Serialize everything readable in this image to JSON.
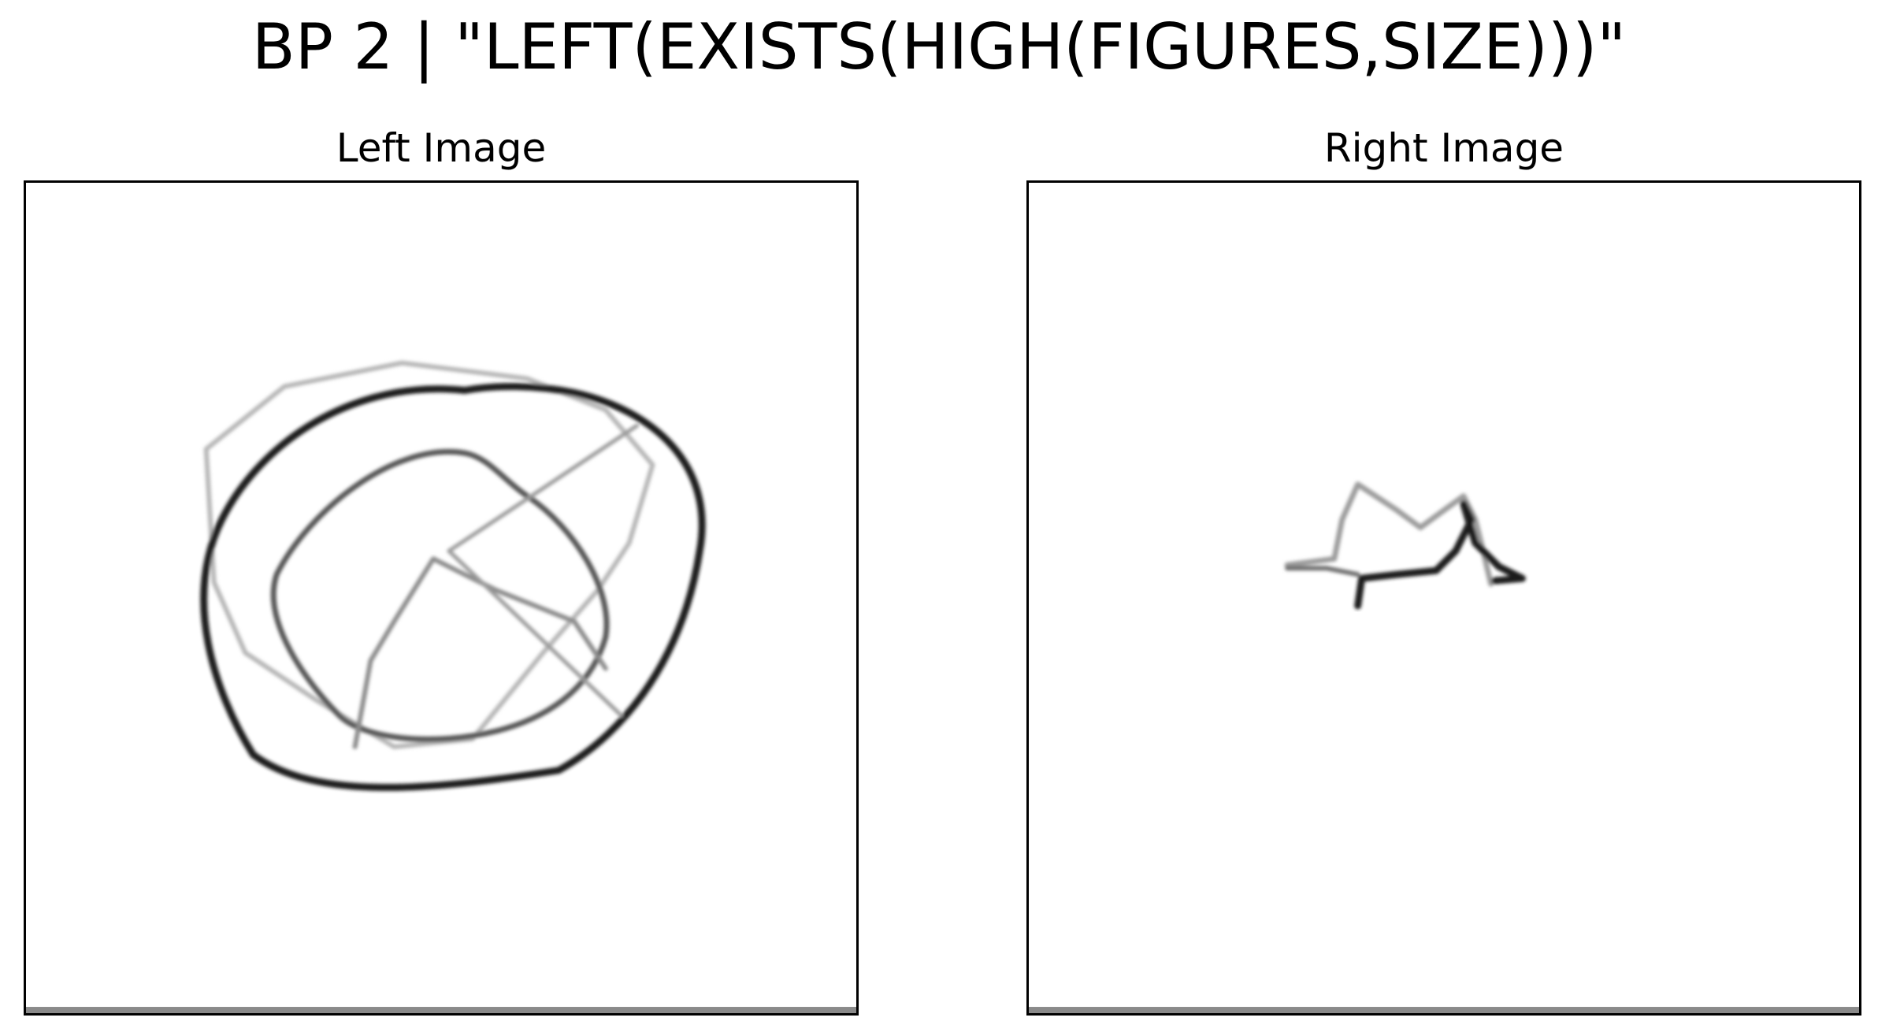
{
  "figure": {
    "title": "BP 2 | \"LEFT(EXISTS(HIGH(FIGURES,SIZE)))\""
  },
  "panels": [
    {
      "title": "Left Image"
    },
    {
      "title": "Right Image"
    }
  ],
  "colors": {
    "background": "#ffffff",
    "ink": "#000000",
    "frame": "#000000",
    "bottom_edge": "#8a8a8a"
  }
}
